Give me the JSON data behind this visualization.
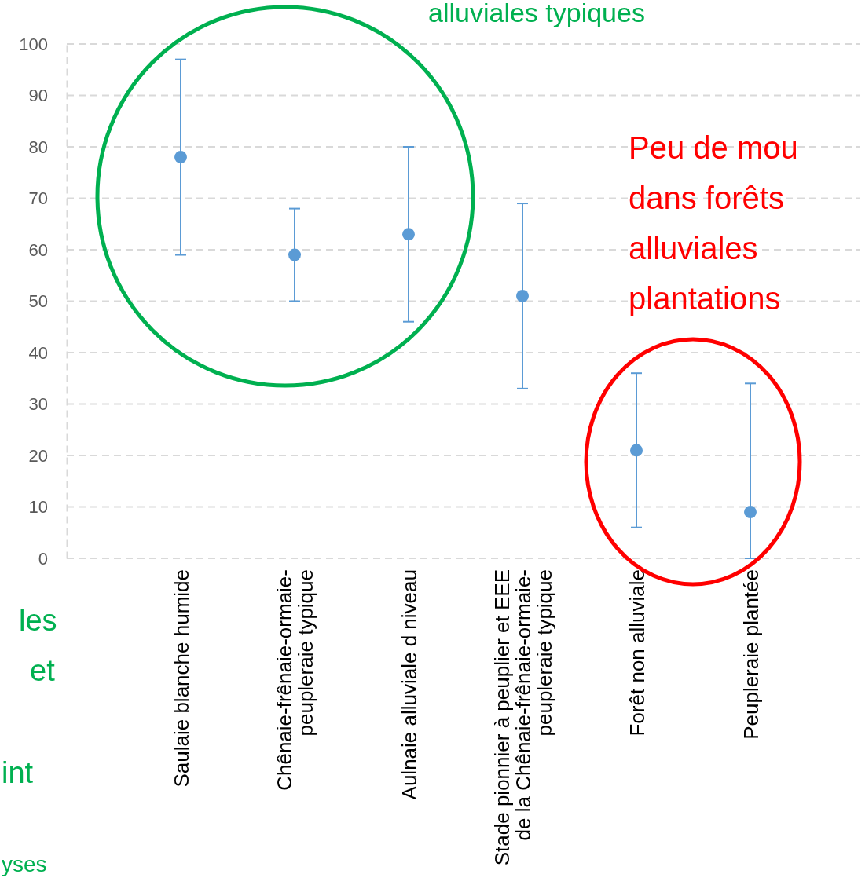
{
  "chart_data": {
    "type": "scatter",
    "categories": [
      "Saulaie blanche humide",
      "Chênaie-frênaie-ormaie-peupleraie typique",
      "Aulnaie alluviale d niveau",
      "Stade pionnier à peuplier et EEE de la Chênaie-frênaie-ormaie-peupleraie typique",
      "Forêt non alluviale",
      "Peupleraie plantée"
    ],
    "series": [
      {
        "color": "#5b9bd5",
        "values": [
          78,
          59,
          63,
          51,
          21,
          9
        ],
        "errors": [
          [
            59,
            97
          ],
          [
            50,
            68
          ],
          [
            46,
            80
          ],
          [
            33,
            69
          ],
          [
            6,
            36
          ],
          [
            0,
            34
          ]
        ]
      }
    ],
    "ylim": [
      0,
      100
    ],
    "yticks": [
      0,
      10,
      20,
      30,
      40,
      50,
      60,
      70,
      80,
      90,
      100
    ],
    "grid": "y",
    "marker": "circle",
    "annotations": [
      "alluviales typiques",
      "les",
      "et",
      "int",
      "yses",
      "Peu de mou dans forêts alluviales plantations"
    ]
  }
}
